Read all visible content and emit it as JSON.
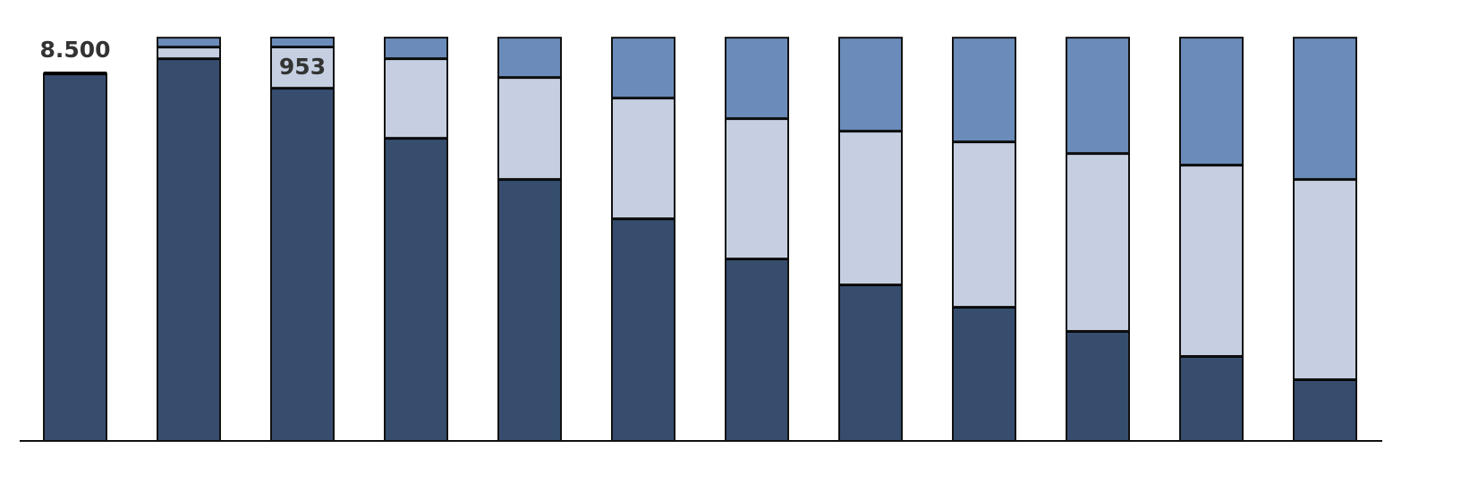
{
  "chart_data": {
    "type": "stacked_bar",
    "categories": [
      null,
      null,
      null,
      null,
      null,
      null,
      null,
      null,
      null,
      null,
      null,
      null
    ],
    "series": [
      {
        "color": "#364d6e",
        "values": [
          8500,
          8851,
          8169,
          7011,
          6059,
          5149,
          4219,
          3619,
          3102,
          2544,
          1965,
          1427
        ],
        "value_labels": [
          "8.500",
          null,
          null,
          null,
          null,
          null,
          null,
          null,
          null,
          null,
          null,
          null
        ]
      },
      {
        "color": "#c5cfe1",
        "values": [
          0,
          269,
          953,
          1841,
          2358,
          2792,
          3247,
          3557,
          3826,
          4115,
          4426,
          4632
        ],
        "value_labels": [
          null,
          null,
          "953",
          null,
          null,
          null,
          null,
          null,
          null,
          null,
          null,
          null
        ]
      },
      {
        "color": "#6b8cba",
        "values": [
          0,
          207,
          208,
          476,
          910,
          1386,
          1861,
          2151,
          2399,
          2668,
          2937,
          3268
        ]
      }
    ],
    "grid": false
  }
}
